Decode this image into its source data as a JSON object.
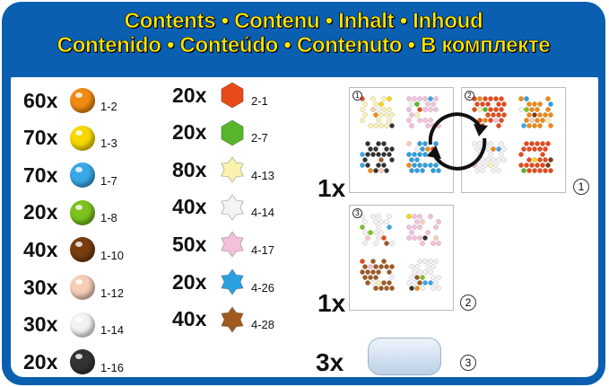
{
  "header": {
    "line1": "Contents • Contenu • Inhalt • Inhoud",
    "line2": "Contenido • Conteúdo • Contenuto • В комплекте"
  },
  "beads_col1": [
    {
      "count": "60x",
      "code": "1-2",
      "color": "#f08a12"
    },
    {
      "count": "70x",
      "code": "1-3",
      "color": "#f8d800"
    },
    {
      "count": "70x",
      "code": "1-7",
      "color": "#3aa8e8"
    },
    {
      "count": "20x",
      "code": "1-8",
      "color": "#7cc21e"
    },
    {
      "count": "40x",
      "code": "1-10",
      "color": "#7a3d10"
    },
    {
      "count": "30x",
      "code": "1-12",
      "color": "#f7cdb8"
    },
    {
      "count": "30x",
      "code": "1-14",
      "color": "#f2f2f2"
    },
    {
      "count": "20x",
      "code": "1-16",
      "color": "#333333"
    }
  ],
  "beads_col2": [
    {
      "count": "20x",
      "code": "2-1",
      "color": "#e84a1a",
      "shape": "hexagon"
    },
    {
      "count": "20x",
      "code": "2-7",
      "color": "#56b52a",
      "shape": "hexagon"
    },
    {
      "count": "80x",
      "code": "4-13",
      "color": "#fbf2b0",
      "shape": "star"
    },
    {
      "count": "40x",
      "code": "4-14",
      "color": "#f4f4f4",
      "shape": "star"
    },
    {
      "count": "50x",
      "code": "4-17",
      "color": "#f5c0dc",
      "shape": "star"
    },
    {
      "count": "20x",
      "code": "4-26",
      "color": "#2aa0e0",
      "shape": "star"
    },
    {
      "count": "40x",
      "code": "4-28",
      "color": "#a05a20",
      "shape": "star"
    }
  ],
  "extras": [
    {
      "qty": "1x",
      "num": "1",
      "boards": [
        "1",
        "2"
      ]
    },
    {
      "qty": "1x",
      "num": "2",
      "boards": [
        "3"
      ]
    },
    {
      "qty": "3x",
      "num": "3"
    }
  ],
  "colors": {
    "frame": "#0a5fb0",
    "title": "#ffe600"
  }
}
